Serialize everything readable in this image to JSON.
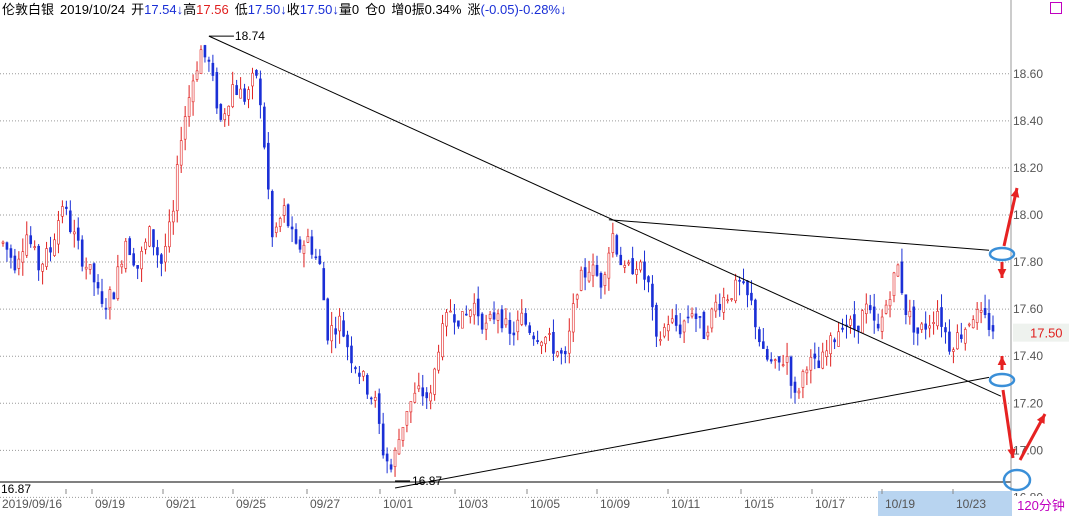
{
  "header": {
    "instrument": "伦敦白银",
    "date": "2019/10/24",
    "open_label": "开",
    "open_value": "17.54↓",
    "high_label": "高",
    "high_value": "17.56",
    "low_label": "低",
    "low_value": "17.50↓",
    "close_label": "收",
    "close_value": "17.50↓",
    "volume_label": "量",
    "volume_value": "0",
    "oi_label": "仓",
    "oi_value": "0",
    "increase_label": "增",
    "increase_value": "0",
    "amplitude_label": "振",
    "amplitude_value": "0.34%",
    "change_label": "涨",
    "change_value": "(-0.05)-0.28%↓"
  },
  "period_label": "120分钟",
  "colors": {
    "up": "#e0201f",
    "down": "#1a2fd6",
    "grid": "#9a9a9a",
    "axis_text": "#555555",
    "annotation": "#e62222",
    "ellipse": "#3a8fd8",
    "highlight": "#b8d4f0"
  },
  "chart_data": {
    "type": "candlestick",
    "ylim": [
      16.84,
      18.82
    ],
    "y_ticks": [
      "18.60",
      "18.40",
      "18.20",
      "18.00",
      "17.80",
      "17.60",
      "17.40",
      "17.20",
      "17.00",
      "16.80"
    ],
    "x_ticks": [
      "2019/09/16",
      "09/19",
      "09/21",
      "09/25",
      "09/27",
      "10/01",
      "10/03",
      "10/05",
      "10/09",
      "10/11",
      "10/15",
      "10/17",
      "10/19",
      "10/23"
    ],
    "last_price": "17.50",
    "annotations": {
      "high": "18.74",
      "low": "16.87",
      "low_left": "16.87"
    },
    "trendlines": [
      {
        "name": "descending-line-1",
        "from": {
          "bar": 52,
          "price": 18.76
        },
        "to": {
          "bar": 252,
          "price": 17.23
        }
      },
      {
        "name": "descending-line-2",
        "from": {
          "bar": 153,
          "price": 17.98
        },
        "to": {
          "bar": 249,
          "price": 17.85
        }
      },
      {
        "name": "ascending-line",
        "from": {
          "bar": 99,
          "price": 16.84
        },
        "to": {
          "bar": 249,
          "price": 17.31
        }
      }
    ],
    "keypoints": [
      [
        0,
        17.88
      ],
      [
        3,
        17.8
      ],
      [
        6,
        17.92
      ],
      [
        9,
        17.78
      ],
      [
        12,
        17.85
      ],
      [
        15,
        18.05
      ],
      [
        17,
        17.95
      ],
      [
        20,
        17.82
      ],
      [
        23,
        17.72
      ],
      [
        25,
        17.6
      ],
      [
        28,
        17.68
      ],
      [
        31,
        17.9
      ],
      [
        34,
        17.78
      ],
      [
        37,
        17.92
      ],
      [
        40,
        17.8
      ],
      [
        43,
        18.0
      ],
      [
        45,
        18.35
      ],
      [
        48,
        18.58
      ],
      [
        50,
        18.7
      ],
      [
        52,
        18.64
      ],
      [
        55,
        18.4
      ],
      [
        58,
        18.55
      ],
      [
        61,
        18.5
      ],
      [
        64,
        18.6
      ],
      [
        66,
        18.3
      ],
      [
        68,
        17.9
      ],
      [
        71,
        18.02
      ],
      [
        74,
        17.85
      ],
      [
        77,
        17.9
      ],
      [
        80,
        17.78
      ],
      [
        82,
        17.5
      ],
      [
        85,
        17.55
      ],
      [
        88,
        17.4
      ],
      [
        91,
        17.3
      ],
      [
        94,
        17.2
      ],
      [
        96,
        17.0
      ],
      [
        98,
        16.92
      ],
      [
        100,
        17.05
      ],
      [
        102,
        17.18
      ],
      [
        105,
        17.25
      ],
      [
        108,
        17.22
      ],
      [
        110,
        17.45
      ],
      [
        113,
        17.6
      ],
      [
        116,
        17.55
      ],
      [
        119,
        17.62
      ],
      [
        122,
        17.52
      ],
      [
        125,
        17.6
      ],
      [
        128,
        17.48
      ],
      [
        131,
        17.56
      ],
      [
        134,
        17.5
      ],
      [
        137,
        17.48
      ],
      [
        140,
        17.42
      ],
      [
        142,
        17.38
      ],
      [
        145,
        17.7
      ],
      [
        148,
        17.78
      ],
      [
        151,
        17.72
      ],
      [
        154,
        17.92
      ],
      [
        157,
        17.75
      ],
      [
        160,
        17.8
      ],
      [
        163,
        17.7
      ],
      [
        165,
        17.45
      ],
      [
        168,
        17.55
      ],
      [
        171,
        17.52
      ],
      [
        174,
        17.6
      ],
      [
        177,
        17.5
      ],
      [
        180,
        17.62
      ],
      [
        183,
        17.66
      ],
      [
        186,
        17.7
      ],
      [
        189,
        17.62
      ],
      [
        192,
        17.4
      ],
      [
        195,
        17.35
      ],
      [
        198,
        17.4
      ],
      [
        200,
        17.22
      ],
      [
        203,
        17.38
      ],
      [
        206,
        17.35
      ],
      [
        209,
        17.45
      ],
      [
        212,
        17.55
      ],
      [
        215,
        17.52
      ],
      [
        218,
        17.6
      ],
      [
        221,
        17.5
      ],
      [
        224,
        17.68
      ],
      [
        226,
        17.78
      ],
      [
        228,
        17.6
      ],
      [
        231,
        17.5
      ],
      [
        234,
        17.55
      ],
      [
        236,
        17.6
      ],
      [
        239,
        17.45
      ],
      [
        242,
        17.5
      ],
      [
        245,
        17.58
      ],
      [
        248,
        17.55
      ],
      [
        250,
        17.52
      ]
    ]
  }
}
